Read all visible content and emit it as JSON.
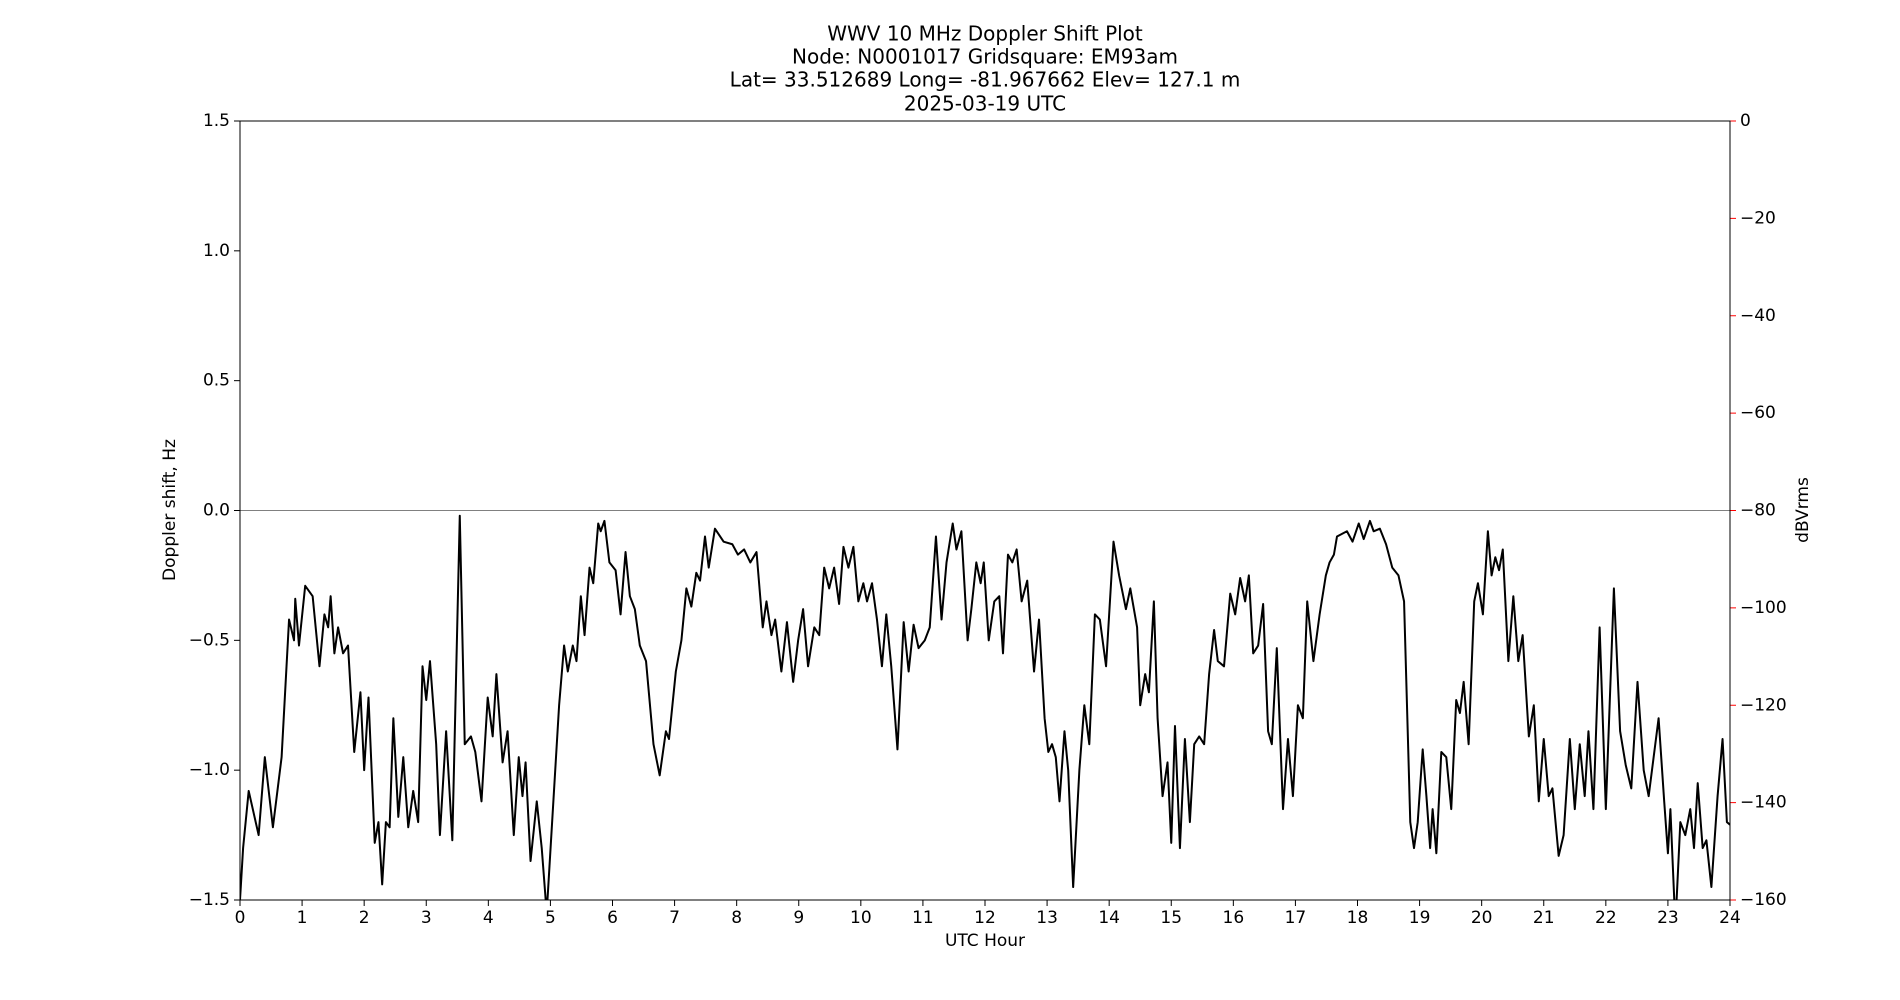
{
  "chart_data": {
    "type": "line",
    "title": [
      "WWV 10 MHz Doppler Shift Plot",
      "Node:  N0001017     Gridsquare:  EM93am",
      "Lat= 33.512689    Long= -81.967662    Elev= 127.1 m",
      "2025-03-19  UTC"
    ],
    "xlabel": "UTC Hour",
    "ylabel": "Doppler shift, Hz",
    "y2label": "dBVrms",
    "y2color": "#ff0000",
    "xlim": [
      0,
      24
    ],
    "xticks": [
      0,
      1,
      2,
      3,
      4,
      5,
      6,
      7,
      8,
      9,
      10,
      11,
      12,
      13,
      14,
      15,
      16,
      17,
      18,
      19,
      20,
      21,
      22,
      23,
      24
    ],
    "ylim": [
      -1.5,
      1.5
    ],
    "yticks": [
      {
        "value": -1.5,
        "label": "−1.5"
      },
      {
        "value": -1.0,
        "label": "−1.0"
      },
      {
        "value": -0.5,
        "label": "−0.5"
      },
      {
        "value": 0,
        "label": "0.0"
      },
      0.5,
      {
        "value": 1.0,
        "label": "1.0"
      },
      1.5
    ],
    "y2lim": [
      -160,
      0
    ],
    "y2ticks": [
      0,
      {
        "value": -20,
        "label": "−20"
      },
      {
        "value": -40,
        "label": "−40"
      },
      {
        "value": -60,
        "label": "−60"
      },
      {
        "value": -80,
        "label": "−80"
      },
      {
        "value": -100,
        "label": "−100"
      },
      {
        "value": -120,
        "label": "−120"
      },
      {
        "value": -140,
        "label": "−140"
      },
      {
        "value": -160,
        "label": "−160"
      }
    ],
    "hline": 0,
    "x": [
      0,
      0.05,
      0.14,
      0.3,
      0.4,
      0.53,
      0.67,
      0.79,
      0.87,
      0.89,
      0.95,
      1.05,
      1.17,
      1.28,
      1.36,
      1.42,
      1.46,
      1.52,
      1.58,
      1.66,
      1.74,
      1.84,
      1.94,
      2.0,
      2.07,
      2.17,
      2.23,
      2.29,
      2.35,
      2.41,
      2.47,
      2.55,
      2.63,
      2.71,
      2.79,
      2.87,
      2.94,
      3.0,
      3.06,
      3.16,
      3.22,
      3.32,
      3.42,
      3.54,
      3.62,
      3.72,
      3.79,
      3.89,
      3.99,
      4.07,
      4.13,
      4.23,
      4.31,
      4.41,
      4.49,
      4.55,
      4.6,
      4.68,
      4.78,
      4.86,
      4.94,
      5.14,
      5.22,
      5.28,
      5.36,
      5.42,
      5.49,
      5.55,
      5.63,
      5.69,
      5.77,
      5.81,
      5.87,
      5.95,
      6.05,
      6.13,
      6.21,
      6.28,
      6.36,
      6.44,
      6.54,
      6.66,
      6.76,
      6.86,
      6.91,
      7.02,
      7.11,
      7.19,
      7.27,
      7.35,
      7.41,
      7.49,
      7.55,
      7.65,
      7.79,
      7.93,
      8.02,
      8.12,
      8.22,
      8.32,
      8.42,
      8.48,
      8.56,
      8.62,
      8.72,
      8.81,
      8.91,
      8.99,
      9.07,
      9.15,
      9.25,
      9.33,
      9.41,
      9.49,
      9.57,
      9.65,
      9.72,
      9.8,
      9.88,
      9.96,
      10.04,
      10.1,
      10.18,
      10.26,
      10.34,
      10.41,
      10.49,
      10.59,
      10.69,
      10.77,
      10.85,
      10.93,
      11.03,
      11.11,
      11.21,
      11.3,
      11.38,
      11.48,
      11.54,
      11.62,
      11.72,
      11.78,
      11.86,
      11.93,
      11.98,
      12.06,
      12.15,
      12.23,
      12.29,
      12.37,
      12.44,
      12.51,
      12.59,
      12.68,
      12.79,
      12.87,
      12.96,
      13.02,
      13.08,
      13.14,
      13.2,
      13.28,
      13.34,
      13.42,
      13.52,
      13.6,
      13.68,
      13.77,
      13.85,
      13.95,
      14.07,
      14.16,
      14.27,
      14.34,
      14.45,
      14.5,
      14.58,
      14.64,
      14.72,
      14.78,
      14.86,
      14.94,
      15.0,
      15.06,
      15.14,
      15.22,
      15.3,
      15.37,
      15.45,
      15.53,
      15.61,
      15.69,
      15.75,
      15.85,
      15.95,
      16.03,
      16.11,
      16.19,
      16.25,
      16.32,
      16.4,
      16.48,
      16.56,
      16.62,
      16.7,
      16.8,
      16.88,
      16.96,
      17.04,
      17.12,
      17.19,
      17.29,
      17.39,
      17.49,
      17.55,
      17.62,
      17.67,
      17.83,
      17.92,
      18.02,
      18.1,
      18.2,
      18.26,
      18.36,
      18.46,
      18.56,
      18.66,
      18.75,
      18.85,
      18.91,
      18.97,
      19.05,
      19.11,
      19.17,
      19.21,
      19.27,
      19.35,
      19.43,
      19.51,
      19.59,
      19.65,
      19.71,
      19.79,
      19.88,
      19.94,
      20.02,
      20.1,
      20.16,
      20.22,
      20.28,
      20.34,
      20.43,
      20.51,
      20.59,
      20.66,
      20.76,
      20.84,
      20.92,
      21.0,
      21.08,
      21.14,
      21.24,
      21.32,
      21.42,
      21.5,
      21.58,
      21.66,
      21.72,
      21.8,
      21.9,
      22.0,
      22.13,
      22.23,
      22.32,
      22.41,
      22.51,
      22.61,
      22.69,
      22.77,
      22.85,
      22.94,
      23.0,
      23.04,
      23.12,
      23.2,
      23.28,
      23.36,
      23.42,
      23.48,
      23.56,
      23.62,
      23.7,
      23.8,
      23.88,
      23.95,
      24
    ],
    "series": [
      {
        "color": "#000000",
        "values": [
          -1.5,
          -1.3,
          -1.08,
          -1.25,
          -0.95,
          -1.22,
          -0.95,
          -0.42,
          -0.5,
          -0.34,
          -0.52,
          -0.29,
          -0.33,
          -0.6,
          -0.4,
          -0.45,
          -0.33,
          -0.55,
          -0.45,
          -0.55,
          -0.52,
          -0.93,
          -0.7,
          -1.0,
          -0.72,
          -1.28,
          -1.2,
          -1.44,
          -1.2,
          -1.22,
          -0.8,
          -1.18,
          -0.95,
          -1.22,
          -1.08,
          -1.2,
          -0.6,
          -0.73,
          -0.58,
          -0.9,
          -1.25,
          -0.85,
          -1.27,
          -0.02,
          -0.9,
          -0.87,
          -0.93,
          -1.12,
          -0.72,
          -0.87,
          -0.63,
          -0.97,
          -0.85,
          -1.25,
          -0.95,
          -1.1,
          -0.97,
          -1.35,
          -1.12,
          -1.3,
          -1.55,
          -0.75,
          -0.52,
          -0.62,
          -0.52,
          -0.58,
          -0.33,
          -0.48,
          -0.22,
          -0.28,
          -0.05,
          -0.08,
          -0.04,
          -0.2,
          -0.23,
          -0.4,
          -0.16,
          -0.33,
          -0.38,
          -0.52,
          -0.58,
          -0.9,
          -1.02,
          -0.85,
          -0.88,
          -0.62,
          -0.5,
          -0.3,
          -0.37,
          -0.24,
          -0.27,
          -0.1,
          -0.22,
          -0.07,
          -0.12,
          -0.13,
          -0.17,
          -0.15,
          -0.2,
          -0.16,
          -0.45,
          -0.35,
          -0.48,
          -0.42,
          -0.62,
          -0.43,
          -0.66,
          -0.5,
          -0.38,
          -0.6,
          -0.45,
          -0.48,
          -0.22,
          -0.3,
          -0.22,
          -0.36,
          -0.14,
          -0.22,
          -0.14,
          -0.35,
          -0.28,
          -0.35,
          -0.28,
          -0.42,
          -0.6,
          -0.4,
          -0.6,
          -0.92,
          -0.43,
          -0.62,
          -0.44,
          -0.53,
          -0.5,
          -0.45,
          -0.1,
          -0.42,
          -0.2,
          -0.05,
          -0.15,
          -0.08,
          -0.5,
          -0.38,
          -0.2,
          -0.28,
          -0.2,
          -0.5,
          -0.35,
          -0.33,
          -0.55,
          -0.17,
          -0.2,
          -0.15,
          -0.35,
          -0.27,
          -0.62,
          -0.42,
          -0.8,
          -0.93,
          -0.9,
          -0.95,
          -1.12,
          -0.85,
          -1.0,
          -1.45,
          -1.0,
          -0.75,
          -0.9,
          -0.4,
          -0.42,
          -0.6,
          -0.12,
          -0.25,
          -0.38,
          -0.3,
          -0.45,
          -0.75,
          -0.63,
          -0.7,
          -0.35,
          -0.8,
          -1.1,
          -0.97,
          -1.28,
          -0.83,
          -1.3,
          -0.88,
          -1.2,
          -0.9,
          -0.87,
          -0.9,
          -0.63,
          -0.46,
          -0.58,
          -0.6,
          -0.32,
          -0.4,
          -0.26,
          -0.35,
          -0.25,
          -0.55,
          -0.52,
          -0.36,
          -0.85,
          -0.9,
          -0.53,
          -1.15,
          -0.88,
          -1.1,
          -0.75,
          -0.8,
          -0.35,
          -0.58,
          -0.4,
          -0.25,
          -0.2,
          -0.17,
          -0.1,
          -0.08,
          -0.12,
          -0.05,
          -0.11,
          -0.04,
          -0.08,
          -0.07,
          -0.13,
          -0.22,
          -0.25,
          -0.35,
          -1.2,
          -1.3,
          -1.2,
          -0.92,
          -1.1,
          -1.3,
          -1.15,
          -1.32,
          -0.93,
          -0.95,
          -1.15,
          -0.73,
          -0.78,
          -0.66,
          -0.9,
          -0.35,
          -0.28,
          -0.4,
          -0.08,
          -0.25,
          -0.18,
          -0.23,
          -0.15,
          -0.58,
          -0.33,
          -0.58,
          -0.48,
          -0.87,
          -0.75,
          -1.12,
          -0.88,
          -1.1,
          -1.07,
          -1.33,
          -1.25,
          -0.88,
          -1.15,
          -0.9,
          -1.1,
          -0.85,
          -1.15,
          -0.45,
          -1.15,
          -0.3,
          -0.85,
          -0.98,
          -1.07,
          -0.66,
          -1.0,
          -1.1,
          -0.95,
          -0.8,
          -1.12,
          -1.32,
          -1.15,
          -1.6,
          -1.2,
          -1.25,
          -1.15,
          -1.3,
          -1.05,
          -1.3,
          -1.27,
          -1.45,
          -1.1,
          -0.88,
          -1.2,
          -1.21
        ]
      }
    ]
  }
}
